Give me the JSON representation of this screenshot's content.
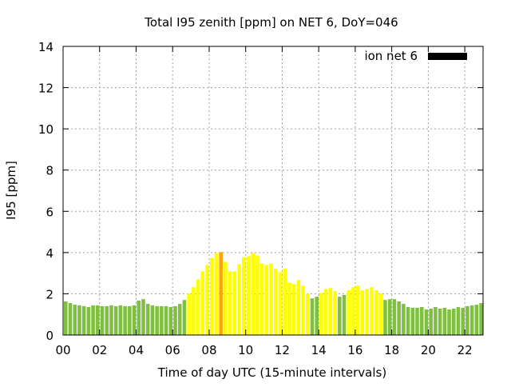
{
  "chart_data": {
    "type": "bar",
    "title": "Total I95 zenith [ppm] on NET 6, DoY=046",
    "xlabel": "Time of day UTC (15-minute intervals)",
    "ylabel": "I95 [ppm]",
    "xlim": [
      0,
      23
    ],
    "ylim": [
      0,
      14
    ],
    "grid": true,
    "legend": {
      "label": "ion net 6",
      "placement": "top-right",
      "color": "#000000"
    },
    "x_ticks": [
      "00",
      "02",
      "04",
      "06",
      "08",
      "10",
      "12",
      "14",
      "16",
      "18",
      "20",
      "22"
    ],
    "y_ticks": [
      "0",
      "2",
      "4",
      "6",
      "8",
      "10",
      "12",
      "14"
    ],
    "interval_hours": 0.25,
    "color_thresholds": {
      "low": 2.0,
      "high": 4.0,
      "low_color": "#80c040",
      "mid_color": "#ffff00",
      "high_color": "#ffa500"
    },
    "values": [
      1.63,
      1.55,
      1.47,
      1.44,
      1.4,
      1.36,
      1.44,
      1.44,
      1.4,
      1.4,
      1.44,
      1.4,
      1.44,
      1.4,
      1.4,
      1.44,
      1.67,
      1.74,
      1.51,
      1.44,
      1.4,
      1.4,
      1.4,
      1.36,
      1.4,
      1.51,
      1.7,
      2.01,
      2.32,
      2.7,
      3.09,
      3.4,
      3.74,
      3.97,
      4.02,
      3.55,
      3.09,
      3.09,
      3.44,
      3.78,
      3.82,
      3.97,
      3.86,
      3.47,
      3.4,
      3.47,
      3.21,
      3.05,
      3.21,
      2.55,
      2.47,
      2.67,
      2.4,
      2.01,
      1.78,
      1.86,
      2.05,
      2.24,
      2.28,
      2.13,
      1.86,
      1.94,
      2.17,
      2.32,
      2.4,
      2.17,
      2.24,
      2.32,
      2.17,
      2.01,
      1.7,
      1.74,
      1.74,
      1.63,
      1.51,
      1.36,
      1.32,
      1.32,
      1.36,
      1.24,
      1.28,
      1.36,
      1.28,
      1.32,
      1.24,
      1.28,
      1.36,
      1.32,
      1.4,
      1.44,
      1.47,
      1.55
    ]
  }
}
